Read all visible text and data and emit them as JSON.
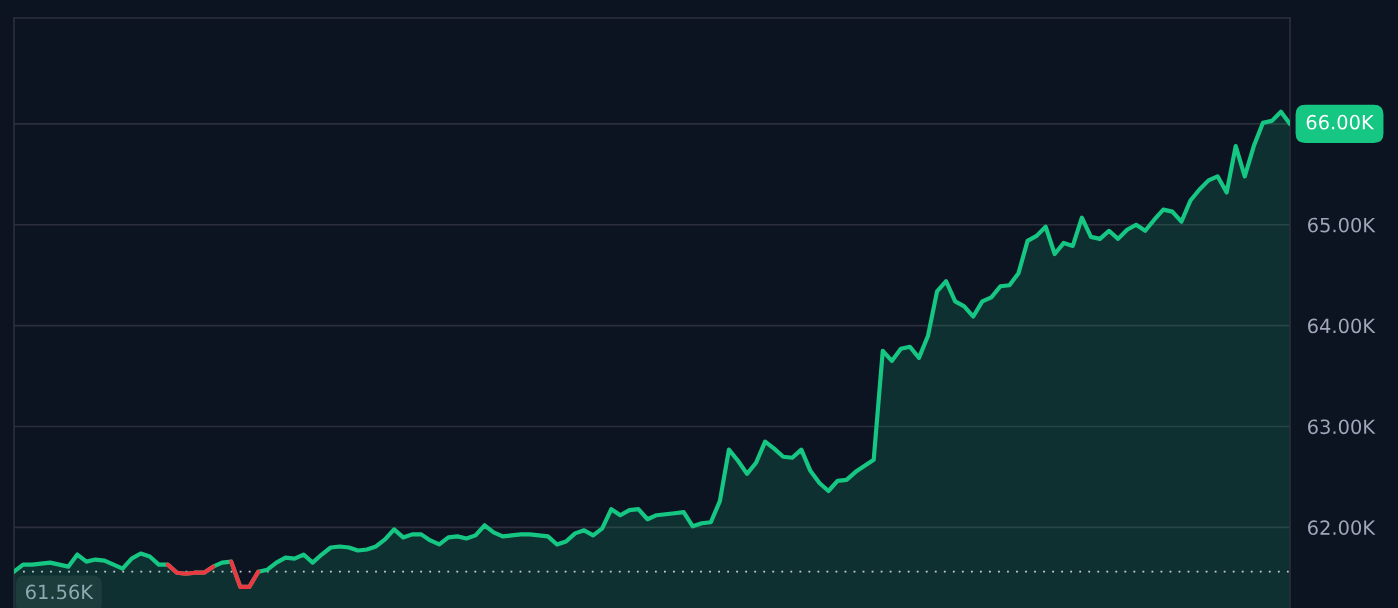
{
  "chart_data": {
    "type": "area",
    "categories": [
      null,
      null,
      null,
      null,
      null,
      null,
      null,
      null,
      null,
      null,
      null,
      null,
      null,
      null,
      null,
      null,
      null,
      null,
      null,
      null,
      null,
      null,
      null,
      null,
      null,
      null,
      null,
      null,
      null,
      null,
      null,
      null,
      null,
      null,
      null,
      null,
      null,
      null,
      null,
      null,
      null,
      null,
      null,
      null,
      null,
      null,
      null,
      null,
      null,
      null,
      null,
      null,
      null,
      null,
      null,
      null,
      null,
      null,
      null,
      null,
      null,
      null,
      null,
      null,
      null,
      null,
      null,
      null,
      null,
      null,
      null,
      null,
      null,
      null,
      null,
      null,
      null,
      null,
      null,
      null,
      null,
      null,
      null,
      null,
      null,
      null,
      null,
      null,
      null,
      null,
      null,
      null,
      null,
      null,
      null,
      null,
      null,
      null,
      null,
      null,
      null,
      null,
      null,
      null,
      null,
      null,
      null,
      null,
      null,
      null,
      null,
      null,
      null,
      null,
      null,
      null,
      null,
      null,
      null,
      null,
      null,
      null,
      null,
      null,
      null,
      null,
      null,
      null,
      null,
      null,
      null,
      null,
      null,
      null,
      null,
      null,
      null,
      null,
      null,
      null,
      null,
      null
    ],
    "series": [
      {
        "color": "#16c784",
        "values": [
          61.56,
          61.63,
          61.63,
          61.64,
          61.65,
          61.63,
          61.61,
          61.73,
          61.66,
          61.68,
          61.67,
          61.63,
          61.59,
          61.69,
          61.74,
          61.71,
          61.63,
          61.63,
          61.55,
          61.54,
          61.55,
          61.55,
          61.61,
          61.65,
          61.66,
          61.41,
          61.41,
          61.56,
          61.58,
          61.65,
          61.7,
          61.69,
          61.73,
          61.65,
          61.73,
          61.8,
          61.81,
          61.8,
          61.77,
          61.78,
          61.81,
          61.88,
          61.98,
          61.9,
          61.93,
          61.93,
          61.87,
          61.83,
          61.9,
          61.91,
          61.89,
          61.92,
          62.02,
          61.95,
          61.91,
          61.92,
          61.93,
          61.93,
          61.92,
          61.91,
          61.83,
          61.86,
          61.94,
          61.97,
          61.92,
          61.99,
          62.18,
          62.12,
          62.17,
          62.18,
          62.08,
          62.12,
          62.13,
          62.14,
          62.15,
          62.01,
          62.04,
          62.05,
          62.26,
          62.77,
          62.66,
          62.53,
          62.64,
          62.85,
          62.78,
          62.7,
          62.69,
          62.77,
          62.56,
          62.44,
          62.36,
          62.46,
          62.47,
          62.55,
          62.61,
          62.67,
          63.75,
          63.65,
          63.77,
          63.79,
          63.68,
          63.9,
          64.34,
          64.44,
          64.24,
          64.19,
          64.09,
          64.24,
          64.28,
          64.39,
          64.4,
          64.52,
          64.84,
          64.89,
          64.98,
          64.71,
          64.82,
          64.79,
          65.07,
          64.88,
          64.86,
          64.94,
          64.86,
          64.95,
          65.0,
          64.94,
          65.05,
          65.15,
          65.13,
          65.03,
          65.24,
          65.35,
          65.44,
          65.48,
          65.32,
          65.78,
          65.48,
          65.78,
          66.01,
          66.03,
          66.12,
          66.0
        ]
      },
      {
        "type": "line",
        "color": "#ea3943",
        "values": [
          null,
          null,
          null,
          null,
          null,
          null,
          null,
          null,
          null,
          null,
          null,
          null,
          null,
          null,
          null,
          null,
          null,
          61.63,
          61.55,
          61.54,
          61.55,
          61.55,
          61.61,
          null,
          61.66,
          61.41,
          61.41,
          61.56,
          null,
          null,
          null,
          null,
          null,
          null,
          null,
          null,
          null,
          null,
          null,
          null,
          null,
          null,
          null,
          null,
          null,
          null,
          null,
          null,
          null,
          null,
          null,
          null,
          null,
          null,
          null,
          null,
          null,
          null,
          null,
          null,
          null,
          null,
          null,
          null,
          null,
          null,
          null,
          null,
          null,
          null,
          null,
          null,
          null,
          null,
          null,
          null,
          null,
          null,
          null,
          null,
          null,
          null,
          null,
          null,
          null,
          null,
          null,
          null,
          null,
          null,
          null,
          null,
          null,
          null,
          null,
          null,
          null,
          null,
          null,
          null,
          null,
          null,
          null,
          null,
          null,
          null,
          null,
          null,
          null,
          null,
          null,
          null,
          null,
          null,
          null,
          null,
          null,
          null,
          null,
          null,
          null,
          null,
          null,
          null,
          null,
          null,
          null,
          null,
          null,
          null,
          null,
          null,
          null,
          null,
          null,
          null,
          null,
          null,
          null,
          null,
          null,
          null
        ]
      }
    ],
    "ylim": [
      61.2,
      67.05
    ],
    "yticks": [
      {
        "value": 62,
        "label": "62.00K"
      },
      {
        "value": 63,
        "label": "63.00K"
      },
      {
        "value": 64,
        "label": "64.00K"
      },
      {
        "value": 65,
        "label": "65.00K"
      },
      {
        "value": 66,
        "label": null
      }
    ],
    "grid": "y",
    "tick_labels": "y",
    "ref_lines": [
      {
        "axis": "y",
        "value": 61.56,
        "label": "61.56K",
        "color": "#c8ccd6",
        "line_style": "dotted"
      }
    ],
    "annotations": [
      "66.00K"
    ]
  }
}
